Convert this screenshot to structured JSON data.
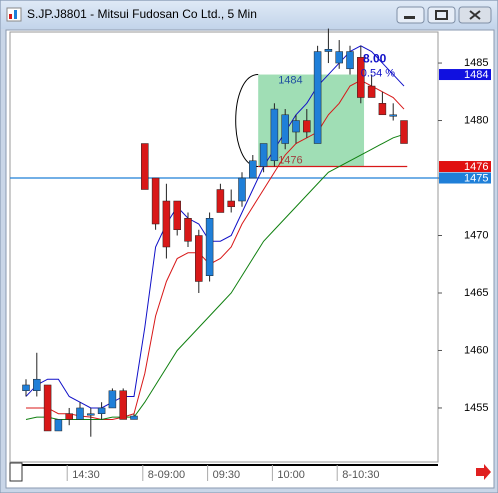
{
  "chart_data": {
    "type": "candlestick",
    "title": "S.JP.J8801 - Mitsui Fudosan Co Ltd., 5 Min",
    "categories": [
      null,
      null,
      null,
      null,
      "14:30",
      null,
      null,
      null,
      null,
      null,
      null,
      "8-09:00",
      null,
      null,
      null,
      null,
      null,
      "09:30",
      null,
      null,
      null,
      null,
      null,
      "10:00",
      null,
      null,
      null,
      null,
      null,
      "8-10:30",
      null,
      null,
      null,
      null,
      null,
      null
    ],
    "open": [
      1456.5,
      1456.5,
      1457,
      1453,
      1454.5,
      1454,
      1454.5,
      1454.5,
      1455,
      1456.5,
      1454,
      1478,
      1475,
      1473,
      1473,
      1471.5,
      1470,
      1466.5,
      1474,
      1473,
      1473,
      1475,
      1476,
      1476.5,
      1478,
      1479,
      1480,
      1478,
      1486,
      1485,
      1484.5,
      1485.5,
      1483,
      1481.5,
      1480.5,
      1480
    ],
    "high": [
      1457.5,
      1459.8,
      1457,
      1454,
      1455,
      1455.5,
      1455,
      1455.5,
      1456.7,
      1456.7,
      1454.5,
      1478,
      1475,
      1474.5,
      1473,
      1472,
      1470.5,
      1472,
      1474.5,
      1474,
      1475.5,
      1477,
      1478,
      1481.5,
      1481,
      1480.5,
      1481,
      1486.5,
      1488,
      1487,
      1486.5,
      1486.5,
      1484,
      1482.5,
      1481.5,
      1480
    ],
    "low": [
      1456,
      1456,
      1453,
      1453,
      1453.5,
      1454,
      1452.5,
      1454,
      1455,
      1454,
      1454,
      1474,
      1470.5,
      1468,
      1470,
      1469,
      1465,
      1466,
      1472,
      1472,
      1472.5,
      1475,
      1475.5,
      1476,
      1477.5,
      1478,
      1478.5,
      1478,
      1485,
      1484.5,
      1484,
      1481.5,
      1482,
      1480.5,
      1480,
      1478
    ],
    "close": [
      1457,
      1457.5,
      1453,
      1454,
      1454,
      1455,
      1454.5,
      1455,
      1456.5,
      1454,
      1454.3,
      1474,
      1471,
      1469,
      1470.5,
      1469.5,
      1466,
      1471.5,
      1472,
      1472.5,
      1475,
      1476.5,
      1478,
      1481,
      1480.5,
      1480,
      1479,
      1486,
      1486.2,
      1486,
      1486,
      1482,
      1482,
      1480.5,
      1480.5,
      1478
    ],
    "up_color": "#1f7fd8",
    "down_color": "#d81818",
    "series": [
      {
        "color": "#1010c8",
        "values": [
          1456,
          1457,
          1457.5,
          1457.5,
          1456,
          1455.5,
          1455,
          1455,
          1455.5,
          1456,
          1456,
          1462,
          1469,
          1471,
          1472.5,
          1471.5,
          1471,
          1469.5,
          1469.5,
          1470,
          1472,
          1474,
          1476,
          1477.5,
          1479,
          1480.5,
          1481.5,
          1483,
          1484,
          1485,
          1486,
          1486.5,
          1486,
          1485,
          1484,
          1483
        ]
      },
      {
        "color": "#d81818",
        "values": [
          1455,
          1455,
          1455,
          1454.5,
          1454.5,
          1454.3,
          1454.2,
          1454,
          1454,
          1454.2,
          1454.5,
          1458,
          1463,
          1466,
          1468,
          1468.5,
          1468.5,
          1467.5,
          1468,
          1469,
          1471,
          1472.5,
          1474,
          1475.5,
          1477,
          1478,
          1478.5,
          1479,
          1480.5,
          1481.5,
          1483,
          1483.5,
          1483,
          1482.5,
          1482,
          1481
        ]
      },
      {
        "color": "#108010",
        "values": [
          1454,
          1454.2,
          1454.2,
          1454,
          1454,
          1454,
          1454,
          1454,
          1454.2,
          1454.2,
          1454.2,
          1455.5,
          1457,
          1458.5,
          1460,
          1461,
          1462,
          1463,
          1464,
          1465,
          1466.5,
          1468,
          1469.5,
          1470.5,
          1471.5,
          1472.5,
          1473.5,
          1474.5,
          1475.5,
          1476,
          1476.5,
          1477,
          1477.5,
          1478,
          1478.5,
          1478.8
        ]
      }
    ],
    "range": {
      "high": 1484,
      "low": 1476,
      "change": {
        "value": 8,
        "label": "8.00"
      },
      "change_pct": {
        "value": 0.54,
        "label": "0.54 %"
      },
      "color": "#8fd8a8"
    },
    "hlines": [
      {
        "value": 1475,
        "color": "#1f7fd8"
      },
      {
        "value": 1476,
        "color": "#d81818"
      }
    ],
    "price_tags": [
      {
        "value": 1484,
        "color": "#1010e0"
      },
      {
        "value": 1476,
        "color": "#e01010"
      },
      {
        "value": 1475,
        "color": "#1f7fd8"
      }
    ],
    "ylim": [
      1450.3,
      1487.7
    ],
    "yticks": [
      1455,
      1460,
      1465,
      1470,
      1475,
      1480,
      1485
    ]
  }
}
